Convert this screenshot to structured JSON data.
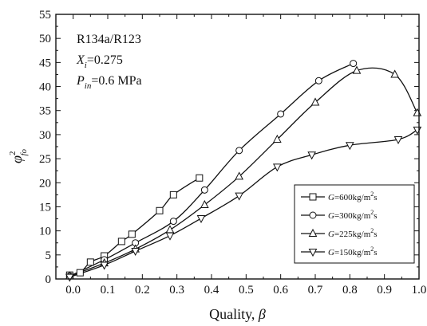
{
  "chart_data": {
    "type": "line",
    "x_axis": {
      "label_text": "Quality, ",
      "label_symbol": "β",
      "range": [
        -0.05,
        1.0
      ],
      "ticks": [
        0.0,
        0.1,
        0.2,
        0.3,
        0.4,
        0.5,
        0.6,
        0.7,
        0.8,
        0.9,
        1.0
      ],
      "tick_labels": [
        "0.0",
        "0.1",
        "0.2",
        "0.3",
        "0.4",
        "0.5",
        "0.6",
        "0.7",
        "0.8",
        "0.9",
        "1.0"
      ]
    },
    "y_axis": {
      "label_symbol": "φ",
      "label_superscript": "2",
      "label_subscript": "fo",
      "range": [
        0,
        55
      ],
      "ticks": [
        0,
        5,
        10,
        15,
        20,
        25,
        30,
        35,
        40,
        45,
        50,
        55
      ],
      "tick_labels": [
        "0",
        "5",
        "10",
        "15",
        "20",
        "25",
        "30",
        "35",
        "40",
        "45",
        "50",
        "55"
      ]
    },
    "annotations": [
      {
        "main": "R134a/R123"
      },
      {
        "main": "X",
        "sub": "i",
        "suffix": "=0.275"
      },
      {
        "main": "P",
        "sub": "in",
        "suffix": "=0.6 MPa"
      }
    ],
    "legend": {
      "position": "lower-right"
    },
    "series": [
      {
        "name": "G=600kg/m²s",
        "legend_var": "G",
        "legend_text": "=600kg/m",
        "legend_sup": "2",
        "legend_suffix": "s",
        "marker": "square",
        "x": [
          -0.01,
          0.02,
          0.05,
          0.09,
          0.14,
          0.17,
          0.25,
          0.29,
          0.365
        ],
        "y": [
          0.8,
          1.3,
          3.5,
          4.8,
          7.8,
          9.3,
          14.2,
          17.5,
          21.0
        ]
      },
      {
        "name": "G=300kg/m²s",
        "legend_var": "G",
        "legend_text": "=300kg/m",
        "legend_sup": "2",
        "legend_suffix": "s",
        "marker": "circle",
        "x": [
          -0.01,
          0.09,
          0.18,
          0.29,
          0.38,
          0.48,
          0.6,
          0.71,
          0.81
        ],
        "y": [
          0.6,
          4.0,
          7.5,
          12.0,
          18.5,
          26.7,
          34.3,
          41.2,
          44.8
        ]
      },
      {
        "name": "G=225kg/m²s",
        "legend_var": "G",
        "legend_text": "=225kg/m",
        "legend_sup": "2",
        "legend_suffix": "s",
        "marker": "triangle-up",
        "x": [
          -0.01,
          0.09,
          0.18,
          0.28,
          0.38,
          0.48,
          0.59,
          0.7,
          0.82,
          0.93,
          0.995
        ],
        "y": [
          0.6,
          3.3,
          6.2,
          10.2,
          15.4,
          21.3,
          29.0,
          36.7,
          43.3,
          42.5,
          34.5
        ]
      },
      {
        "name": "G=150kg/m²s",
        "legend_var": "G",
        "legend_text": "=150kg/m",
        "legend_sup": "2",
        "legend_suffix": "s",
        "marker": "triangle-down",
        "x": [
          -0.01,
          0.09,
          0.18,
          0.28,
          0.37,
          0.48,
          0.59,
          0.69,
          0.8,
          0.94,
          0.995
        ],
        "y": [
          0.4,
          2.9,
          5.8,
          9.0,
          12.6,
          17.3,
          23.3,
          25.8,
          27.8,
          29.0,
          31.0
        ]
      }
    ]
  }
}
